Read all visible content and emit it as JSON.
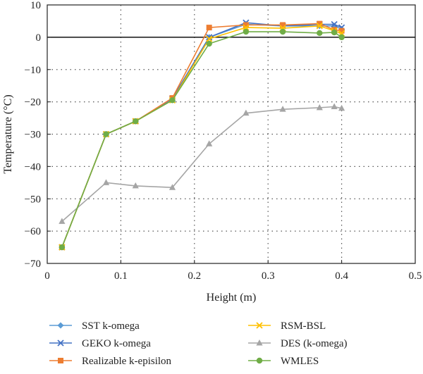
{
  "chart_data": {
    "type": "line",
    "xlabel": "Height (m)",
    "ylabel": "Temperature (°C)",
    "xlim": [
      0,
      0.5
    ],
    "ylim": [
      -70,
      10
    ],
    "xticks": [
      "0",
      "0.1",
      "0.2",
      "0.3",
      "0.4",
      "0.5"
    ],
    "yticks": [
      "10",
      "0",
      "−10",
      "−20",
      "−30",
      "−40",
      "−50",
      "−60",
      "−70"
    ],
    "grid": "dotted",
    "legend_position": "bottom",
    "series": [
      {
        "name": "SST k-omega",
        "color": "#5b9bd5",
        "marker": "diamond",
        "x": [
          0.02,
          0.08,
          0.12,
          0.17,
          0.22,
          0.27,
          0.32,
          0.37,
          0.39,
          0.4
        ],
        "y": [
          -65,
          -30,
          -26,
          -19,
          0,
          4,
          3.5,
          3.5,
          3.5,
          2.5
        ]
      },
      {
        "name": "GEKO k-omega",
        "color": "#4472c4",
        "marker": "x",
        "x": [
          0.02,
          0.08,
          0.12,
          0.17,
          0.22,
          0.27,
          0.32,
          0.37,
          0.39,
          0.4
        ],
        "y": [
          -65,
          -30,
          -26,
          -19,
          0,
          4.5,
          3.5,
          4,
          4,
          3
        ]
      },
      {
        "name": "Realizable k-episilon",
        "color": "#ed7d31",
        "marker": "square",
        "x": [
          0.02,
          0.08,
          0.12,
          0.17,
          0.22,
          0.27,
          0.32,
          0.37,
          0.39,
          0.4
        ],
        "y": [
          -65,
          -30,
          -26,
          -18.8,
          3,
          3.8,
          3.8,
          4.2,
          2.3,
          2
        ]
      },
      {
        "name": "RSM-BSL",
        "color": "#ffc000",
        "marker": "x",
        "x": [
          0.02,
          0.08,
          0.12,
          0.17,
          0.22,
          0.27,
          0.32,
          0.37,
          0.39,
          0.4
        ],
        "y": [
          -65,
          -30,
          -26,
          -19.5,
          -0.5,
          3,
          2.8,
          3.5,
          2,
          1.2
        ]
      },
      {
        "name": "DES (k-omega)",
        "color": "#a5a5a5",
        "marker": "triangle",
        "x": [
          0.02,
          0.08,
          0.12,
          0.17,
          0.22,
          0.27,
          0.32,
          0.37,
          0.39,
          0.4
        ],
        "y": [
          -57,
          -45,
          -46,
          -46.5,
          -33,
          -23.5,
          -22.3,
          -21.8,
          -21.5,
          -22
        ]
      },
      {
        "name": "WMLES",
        "color": "#70ad47",
        "marker": "circle",
        "x": [
          0.02,
          0.08,
          0.12,
          0.17,
          0.22,
          0.27,
          0.32,
          0.37,
          0.39,
          0.4
        ],
        "y": [
          -65,
          -30,
          -26,
          -19.5,
          -2,
          1.7,
          1.7,
          1.3,
          1.5,
          0
        ]
      }
    ]
  }
}
